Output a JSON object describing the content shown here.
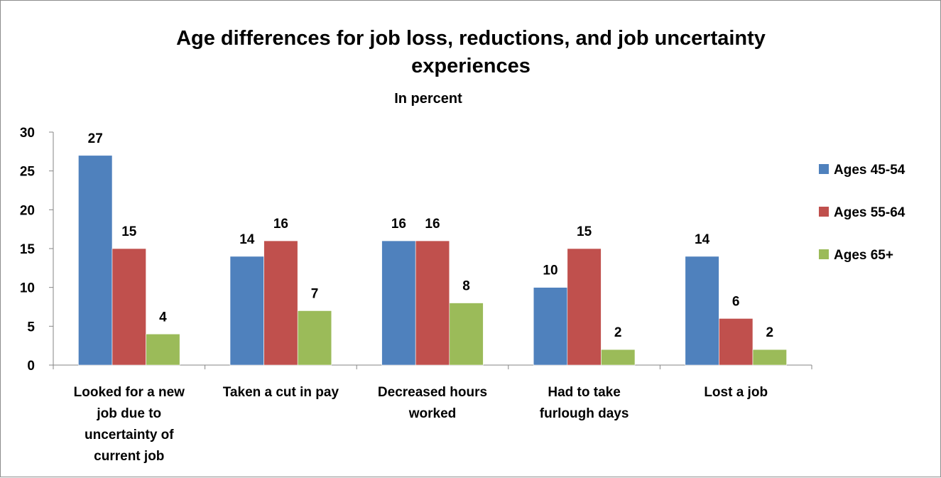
{
  "chart_data": {
    "type": "bar",
    "title_lines": [
      "Age differences for job loss, reductions, and job uncertainty",
      "experiences"
    ],
    "subtitle": "In percent",
    "xlabel": "",
    "ylabel": "",
    "ylim": [
      0,
      30
    ],
    "yticks": [
      0,
      5,
      10,
      15,
      20,
      25,
      30
    ],
    "grid": false,
    "legend_position": "right",
    "categories": [
      [
        "Looked for a new",
        "job due to",
        "uncertainty of",
        "current job"
      ],
      [
        "Taken a cut in pay"
      ],
      [
        "Decreased hours",
        "worked"
      ],
      [
        "Had to take",
        "furlough days"
      ],
      [
        "Lost a job"
      ]
    ],
    "series": [
      {
        "name": "Ages 45-54",
        "color": "#4f81bd",
        "values": [
          27,
          14,
          16,
          10,
          14
        ]
      },
      {
        "name": "Ages 55-64",
        "color": "#c0504d",
        "values": [
          15,
          16,
          16,
          15,
          6
        ]
      },
      {
        "name": "Ages 65+",
        "color": "#9bbb59",
        "values": [
          4,
          7,
          8,
          2,
          2
        ]
      }
    ]
  }
}
